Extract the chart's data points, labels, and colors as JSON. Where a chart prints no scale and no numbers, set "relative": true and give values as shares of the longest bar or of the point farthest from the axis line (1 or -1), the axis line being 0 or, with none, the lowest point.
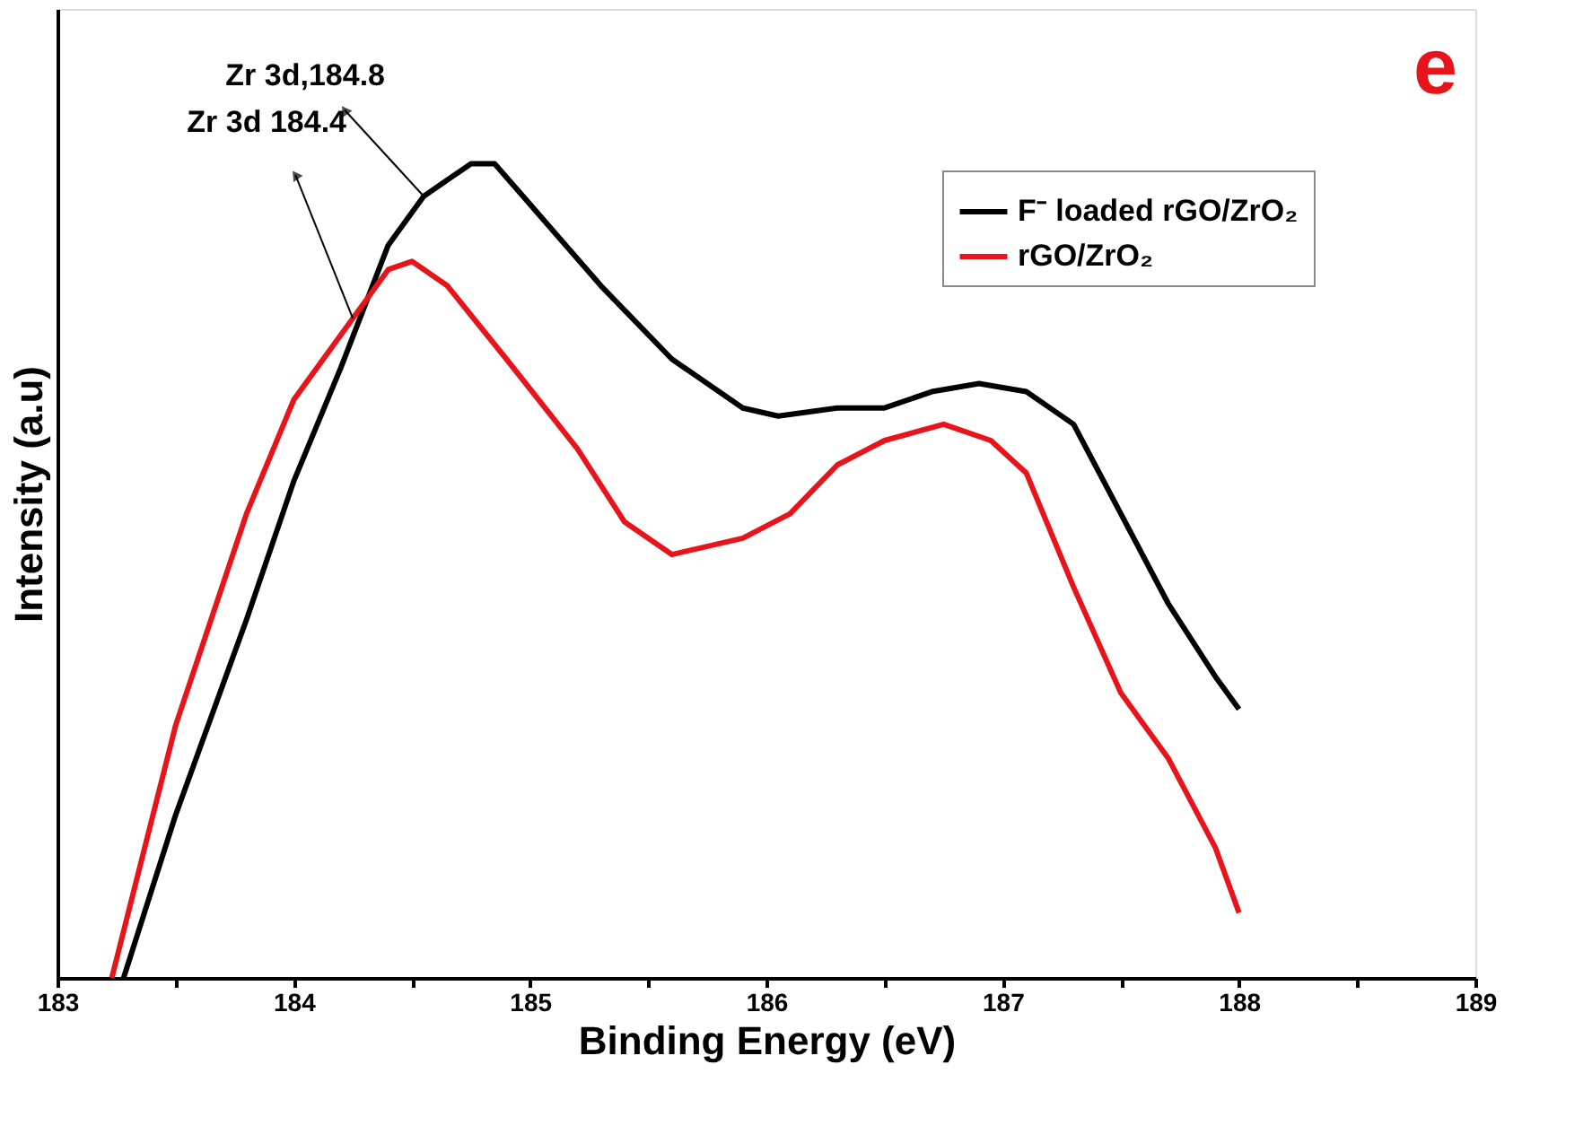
{
  "chart_data": {
    "type": "line",
    "relative": true,
    "xlabel": "Binding Energy (eV)",
    "ylabel": "Intensity (a.u)",
    "xlim": [
      183,
      189
    ],
    "xticks": [
      183,
      {
        "value": 183.5,
        "label": null
      },
      184,
      {
        "value": 184.5,
        "label": null
      },
      185,
      {
        "value": 185.5,
        "label": null
      },
      186,
      {
        "value": 186.5,
        "label": null
      },
      187,
      {
        "value": 187.5,
        "label": null
      },
      188,
      {
        "value": 188.5,
        "label": null
      },
      189
    ],
    "tick_labels": "x",
    "grid": false,
    "legend": "top right",
    "line_style": "solid",
    "marker": "none",
    "series": [
      {
        "name": "F⁻ loaded rGO/ZrO₂",
        "color": "#000000",
        "x": [
          183.28,
          183.5,
          183.8,
          184.0,
          184.2,
          184.4,
          184.55,
          184.75,
          184.85,
          185.0,
          185.3,
          185.6,
          185.9,
          186.05,
          186.3,
          186.5,
          186.7,
          186.9,
          187.1,
          187.3,
          187.5,
          187.7,
          187.9,
          188.0
        ],
        "values": [
          0,
          0.2,
          0.44,
          0.61,
          0.75,
          0.9,
          0.96,
          1.0,
          1.0,
          0.95,
          0.85,
          0.76,
          0.7,
          0.69,
          0.7,
          0.7,
          0.72,
          0.73,
          0.72,
          0.68,
          0.57,
          0.46,
          0.37,
          0.33
        ]
      },
      {
        "name": "rGO/ZrO₂",
        "color": "#e8141c",
        "x": [
          183.23,
          183.5,
          183.8,
          184.0,
          184.2,
          184.4,
          184.5,
          184.65,
          184.9,
          185.2,
          185.4,
          185.6,
          185.9,
          186.1,
          186.3,
          186.5,
          186.75,
          186.95,
          187.1,
          187.3,
          187.5,
          187.7,
          187.9,
          188.0
        ],
        "values": [
          0,
          0.31,
          0.57,
          0.71,
          0.79,
          0.87,
          0.88,
          0.85,
          0.76,
          0.65,
          0.56,
          0.52,
          0.54,
          0.57,
          0.63,
          0.66,
          0.68,
          0.66,
          0.62,
          0.48,
          0.35,
          0.27,
          0.16,
          0.08
        ]
      }
    ],
    "annotations": [
      {
        "text": "Zr 3d,184.8",
        "x": 184.55,
        "y": 0.96
      },
      {
        "text": "Zr 3d 184.4",
        "x": 184.25,
        "y": 0.81
      },
      "e"
    ]
  }
}
